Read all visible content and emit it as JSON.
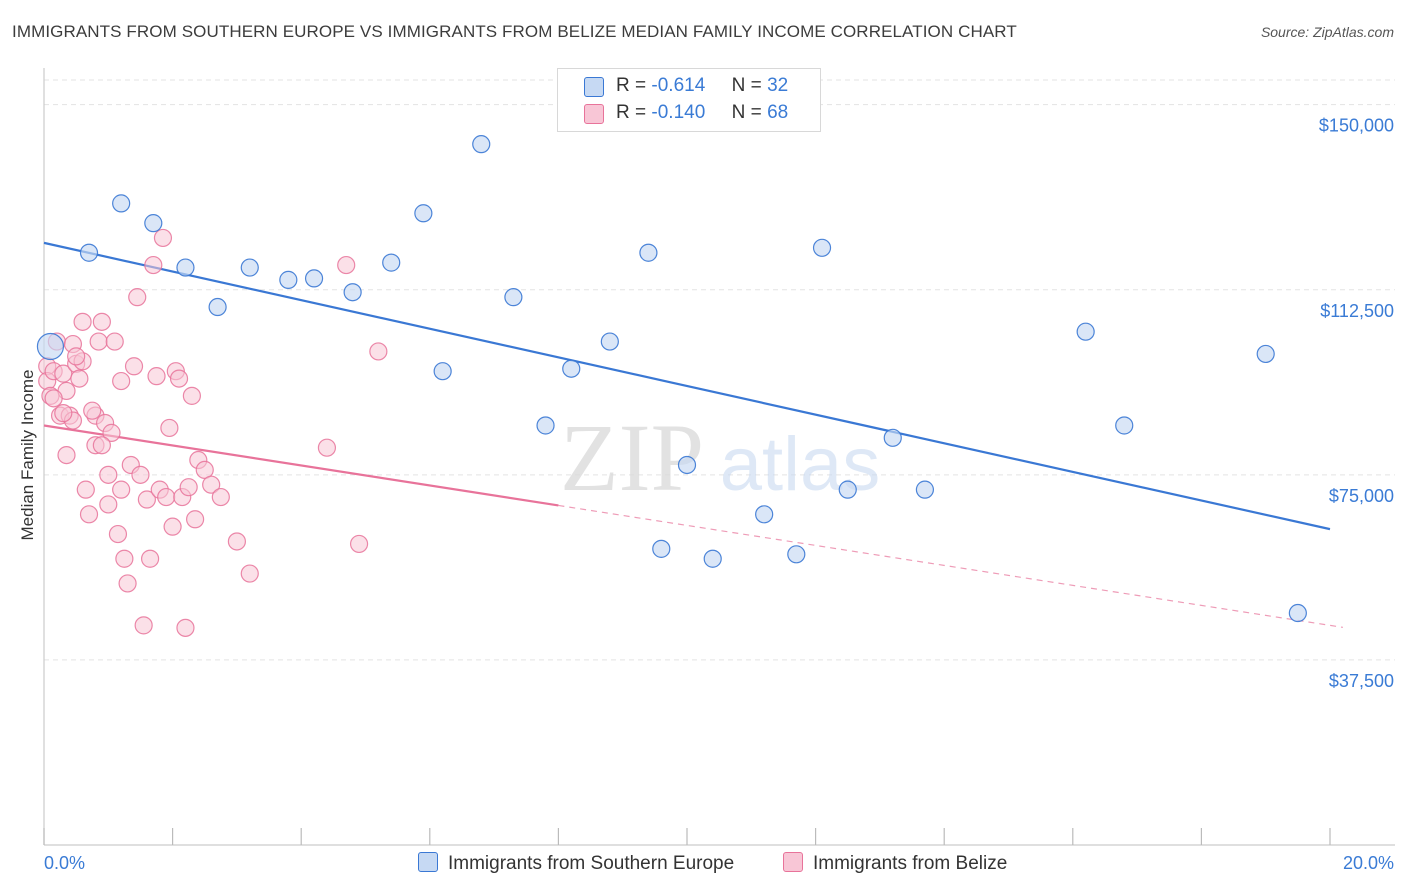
{
  "header": {
    "title": "IMMIGRANTS FROM SOUTHERN EUROPE VS IMMIGRANTS FROM BELIZE MEDIAN FAMILY INCOME CORRELATION CHART",
    "source": "Source: ZipAtlas.com"
  },
  "legend": {
    "rows": [
      {
        "r_label": "R =",
        "r_value": "-0.614",
        "n_label": "N =",
        "n_value": "32"
      },
      {
        "r_label": "R =",
        "r_value": "-0.140",
        "n_label": "N =",
        "n_value": "68"
      }
    ]
  },
  "bottom_legend": {
    "series1": "Immigrants from Southern Europe",
    "series2": "Immigrants from Belize"
  },
  "colors": {
    "blue": "#3a78d4",
    "blue_fill": "#c6d9f3",
    "pink": "#e8739a",
    "pink_fill": "#f8c6d6",
    "grid": "#e3e3e3",
    "axis_text": "#3a7bd5"
  },
  "chart_data": {
    "type": "scatter",
    "title": "IMMIGRANTS FROM SOUTHERN EUROPE VS IMMIGRANTS FROM BELIZE MEDIAN FAMILY INCOME CORRELATION CHART",
    "xlabel": "",
    "ylabel": "Median Family Income",
    "xlim": [
      0,
      20
    ],
    "ylim": [
      0,
      155000
    ],
    "x_tick_labels": {
      "min": "0.0%",
      "max": "20.0%"
    },
    "y_ticks": [
      {
        "value": 37500,
        "label": "$37,500"
      },
      {
        "value": 75000,
        "label": "$75,000"
      },
      {
        "value": 112500,
        "label": "$112,500"
      },
      {
        "value": 150000,
        "label": "$150,000"
      }
    ],
    "watermark": {
      "left": "ZIP",
      "right": "atlas"
    },
    "series": [
      {
        "name": "Immigrants from Southern Europe",
        "color": "blue",
        "trend": {
          "x": [
            0,
            20
          ],
          "y": [
            122000,
            64000
          ],
          "solid_until": 20
        },
        "points": [
          [
            0.1,
            101000
          ],
          [
            0.7,
            120000
          ],
          [
            1.2,
            130000
          ],
          [
            1.7,
            126000
          ],
          [
            2.2,
            117000
          ],
          [
            2.7,
            109000
          ],
          [
            3.2,
            117000
          ],
          [
            3.8,
            114500
          ],
          [
            4.2,
            114800
          ],
          [
            4.8,
            112000
          ],
          [
            5.4,
            118000
          ],
          [
            5.9,
            128000
          ],
          [
            6.2,
            96000
          ],
          [
            6.8,
            142000
          ],
          [
            7.3,
            111000
          ],
          [
            7.8,
            85000
          ],
          [
            8.2,
            96500
          ],
          [
            8.8,
            102000
          ],
          [
            9.4,
            120000
          ],
          [
            9.6,
            60000
          ],
          [
            10.0,
            77000
          ],
          [
            10.4,
            58000
          ],
          [
            11.2,
            67000
          ],
          [
            11.7,
            58900
          ],
          [
            12.1,
            121000
          ],
          [
            12.5,
            72000
          ],
          [
            13.2,
            82500
          ],
          [
            13.7,
            72000
          ],
          [
            16.2,
            104000
          ],
          [
            16.8,
            85000
          ],
          [
            19.0,
            99500
          ],
          [
            19.5,
            47000
          ]
        ]
      },
      {
        "name": "Immigrants from Belize",
        "color": "pink",
        "trend": {
          "x": [
            0,
            20
          ],
          "y": [
            85000,
            44500
          ],
          "solid_until": 8
        }
      }
    ],
    "series_belize_points": [
      [
        0.05,
        97000
      ],
      [
        0.05,
        94000
      ],
      [
        0.1,
        91000
      ],
      [
        0.15,
        96000
      ],
      [
        0.2,
        102000
      ],
      [
        0.25,
        87000
      ],
      [
        0.3,
        95500
      ],
      [
        0.35,
        92000
      ],
      [
        0.4,
        87000
      ],
      [
        0.45,
        101500
      ],
      [
        0.45,
        86000
      ],
      [
        0.5,
        97500
      ],
      [
        0.55,
        94500
      ],
      [
        0.6,
        106000
      ],
      [
        0.65,
        72000
      ],
      [
        0.7,
        67000
      ],
      [
        0.8,
        81000
      ],
      [
        0.8,
        87000
      ],
      [
        0.85,
        102000
      ],
      [
        0.9,
        106000
      ],
      [
        0.95,
        85500
      ],
      [
        1.0,
        69000
      ],
      [
        1.05,
        83500
      ],
      [
        1.1,
        102000
      ],
      [
        1.15,
        63000
      ],
      [
        1.2,
        94000
      ],
      [
        1.25,
        58000
      ],
      [
        1.3,
        53000
      ],
      [
        1.35,
        77000
      ],
      [
        1.4,
        97000
      ],
      [
        1.45,
        111000
      ],
      [
        1.5,
        75000
      ],
      [
        1.55,
        44500
      ],
      [
        1.6,
        70000
      ],
      [
        1.65,
        58000
      ],
      [
        1.7,
        117500
      ],
      [
        1.75,
        95000
      ],
      [
        1.8,
        72000
      ],
      [
        1.85,
        123000
      ],
      [
        1.9,
        70500
      ],
      [
        1.95,
        84500
      ],
      [
        2.0,
        64500
      ],
      [
        2.05,
        96000
      ],
      [
        2.1,
        94500
      ],
      [
        2.15,
        70500
      ],
      [
        2.2,
        44000
      ],
      [
        2.25,
        72500
      ],
      [
        2.3,
        91000
      ],
      [
        2.35,
        66000
      ],
      [
        2.4,
        78000
      ],
      [
        2.5,
        76000
      ],
      [
        2.6,
        73000
      ],
      [
        2.75,
        70500
      ],
      [
        3.0,
        61500
      ],
      [
        3.2,
        55000
      ],
      [
        4.4,
        80500
      ],
      [
        4.7,
        117500
      ],
      [
        4.9,
        61000
      ],
      [
        5.2,
        100000
      ],
      [
        0.35,
        79000
      ],
      [
        0.75,
        88000
      ],
      [
        1.0,
        75000
      ],
      [
        0.6,
        98000
      ],
      [
        1.2,
        72000
      ],
      [
        0.9,
        81000
      ],
      [
        0.3,
        87500
      ],
      [
        0.5,
        99000
      ],
      [
        0.15,
        90500
      ]
    ]
  }
}
